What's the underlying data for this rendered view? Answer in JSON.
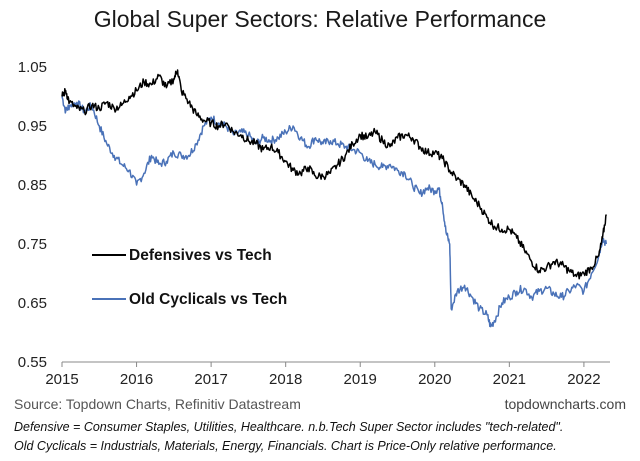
{
  "chart_data": {
    "type": "line",
    "title": "Global Super Sectors: Relative Performance",
    "xlabel": "",
    "ylabel": "",
    "xlim": [
      2015.0,
      2022.35
    ],
    "ylim": [
      0.55,
      1.05
    ],
    "x_ticks": [
      "2015",
      "2016",
      "2017",
      "2018",
      "2019",
      "2020",
      "2021",
      "2022"
    ],
    "y_ticks": [
      "0.55",
      "0.65",
      "0.75",
      "0.85",
      "0.95",
      "1.05"
    ],
    "grid": false,
    "series": [
      {
        "name": "Defensives vs Tech",
        "color": "#000000",
        "x": [
          2015.0,
          2015.05,
          2015.1,
          2015.2,
          2015.3,
          2015.4,
          2015.5,
          2015.6,
          2015.7,
          2015.8,
          2015.9,
          2016.0,
          2016.1,
          2016.2,
          2016.3,
          2016.4,
          2016.5,
          2016.55,
          2016.6,
          2016.7,
          2016.8,
          2016.9,
          2017.0,
          2017.1,
          2017.2,
          2017.3,
          2017.4,
          2017.5,
          2017.6,
          2017.7,
          2017.8,
          2017.9,
          2018.0,
          2018.1,
          2018.2,
          2018.3,
          2018.4,
          2018.5,
          2018.6,
          2018.7,
          2018.8,
          2018.9,
          2019.0,
          2019.1,
          2019.2,
          2019.3,
          2019.4,
          2019.5,
          2019.6,
          2019.7,
          2019.8,
          2019.9,
          2020.0,
          2020.1,
          2020.2,
          2020.3,
          2020.4,
          2020.5,
          2020.6,
          2020.7,
          2020.8,
          2020.9,
          2021.0,
          2021.1,
          2021.2,
          2021.3,
          2021.4,
          2021.5,
          2021.6,
          2021.7,
          2021.8,
          2021.9,
          2022.0,
          2022.1,
          2022.2,
          2022.25,
          2022.3
        ],
        "values": [
          1.0,
          1.01,
          0.99,
          0.98,
          0.975,
          0.985,
          0.98,
          0.99,
          0.98,
          0.985,
          1.0,
          1.01,
          1.025,
          1.02,
          1.035,
          1.015,
          1.03,
          1.045,
          1.01,
          0.99,
          0.97,
          0.96,
          0.955,
          0.95,
          0.955,
          0.94,
          0.935,
          0.925,
          0.92,
          0.91,
          0.915,
          0.905,
          0.89,
          0.875,
          0.87,
          0.88,
          0.865,
          0.865,
          0.87,
          0.885,
          0.9,
          0.92,
          0.935,
          0.93,
          0.94,
          0.925,
          0.915,
          0.93,
          0.935,
          0.93,
          0.915,
          0.905,
          0.905,
          0.895,
          0.875,
          0.86,
          0.85,
          0.83,
          0.815,
          0.795,
          0.78,
          0.775,
          0.775,
          0.76,
          0.74,
          0.72,
          0.705,
          0.71,
          0.72,
          0.715,
          0.705,
          0.695,
          0.7,
          0.71,
          0.73,
          0.76,
          0.8
        ]
      },
      {
        "name": "Old Cyclicals vs Tech",
        "color": "#4a72b8",
        "x": [
          2015.0,
          2015.05,
          2015.1,
          2015.2,
          2015.3,
          2015.4,
          2015.5,
          2015.6,
          2015.7,
          2015.8,
          2015.9,
          2016.0,
          2016.1,
          2016.2,
          2016.3,
          2016.4,
          2016.5,
          2016.6,
          2016.7,
          2016.8,
          2016.9,
          2017.0,
          2017.1,
          2017.2,
          2017.3,
          2017.4,
          2017.5,
          2017.6,
          2017.7,
          2017.8,
          2017.9,
          2018.0,
          2018.1,
          2018.2,
          2018.3,
          2018.4,
          2018.5,
          2018.6,
          2018.7,
          2018.8,
          2018.9,
          2019.0,
          2019.1,
          2019.2,
          2019.3,
          2019.4,
          2019.5,
          2019.6,
          2019.7,
          2019.8,
          2019.9,
          2020.0,
          2020.05,
          2020.1,
          2020.15,
          2020.2,
          2020.22,
          2020.3,
          2020.4,
          2020.5,
          2020.6,
          2020.7,
          2020.75,
          2020.8,
          2020.9,
          2021.0,
          2021.1,
          2021.2,
          2021.3,
          2021.4,
          2021.5,
          2021.6,
          2021.7,
          2021.8,
          2021.9,
          2022.0,
          2022.1,
          2022.2,
          2022.25,
          2022.3
        ],
        "values": [
          1.0,
          0.975,
          0.985,
          0.99,
          0.975,
          0.985,
          0.95,
          0.92,
          0.9,
          0.885,
          0.875,
          0.85,
          0.87,
          0.9,
          0.885,
          0.89,
          0.905,
          0.9,
          0.9,
          0.92,
          0.95,
          0.965,
          0.955,
          0.95,
          0.935,
          0.94,
          0.935,
          0.92,
          0.93,
          0.925,
          0.93,
          0.94,
          0.95,
          0.93,
          0.915,
          0.93,
          0.92,
          0.925,
          0.92,
          0.915,
          0.91,
          0.905,
          0.89,
          0.885,
          0.88,
          0.885,
          0.875,
          0.87,
          0.85,
          0.835,
          0.845,
          0.84,
          0.845,
          0.82,
          0.77,
          0.75,
          0.64,
          0.67,
          0.68,
          0.66,
          0.64,
          0.63,
          0.61,
          0.62,
          0.65,
          0.66,
          0.67,
          0.675,
          0.66,
          0.67,
          0.675,
          0.665,
          0.66,
          0.67,
          0.68,
          0.67,
          0.7,
          0.73,
          0.76,
          0.75
        ]
      }
    ]
  },
  "footer": {
    "source": "Source: Topdown Charts, Refinitiv Datastream",
    "site": "topdowncharts.com",
    "note_line1": "Defensive = Consumer Staples, Utilities, Healthcare.  n.b.Tech Super Sector includes \"tech-related\".",
    "note_line2": "Old Cyclicals = Industrials, Materials, Energy, Financials.  Chart is Price-Only relative performance."
  }
}
